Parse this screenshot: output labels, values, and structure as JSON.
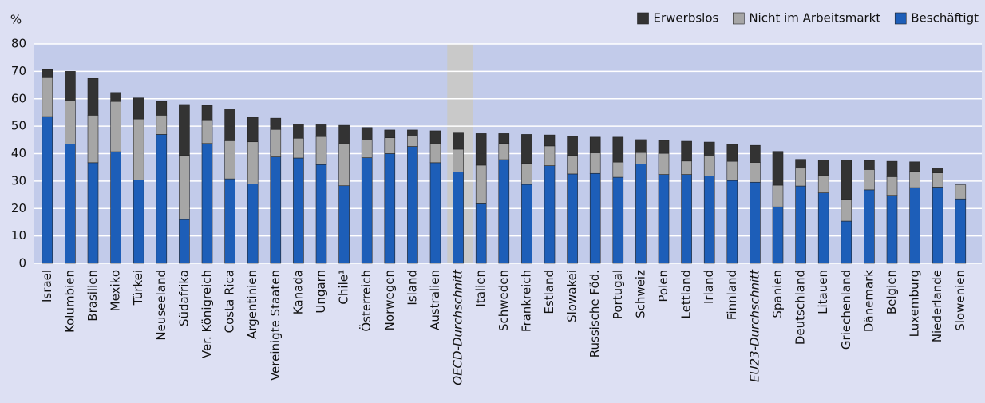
{
  "chart_data": {
    "type": "stacked_bar",
    "y_label": "%",
    "categories": [
      "Israel",
      "Kolumbien",
      "Brasilien",
      "Mexiko",
      "Türkei",
      "Neuseeland",
      "Südafrika",
      "Ver. Königreich",
      "Costa Rica",
      "Argentinien",
      "Vereinigte Staaten",
      "Kanada",
      "Ungarn",
      "Chile¹",
      "Österreich",
      "Norwegen",
      "Island",
      "Australien",
      "OECD-Durchschnitt",
      "Italien",
      "Schweden",
      "Frankreich",
      "Estland",
      "Slowakei",
      "Russische Föd.",
      "Portugal",
      "Schweiz",
      "Polen",
      "Lettland",
      "Irland",
      "Finnland",
      "EU23-Durchschnitt",
      "Spanien",
      "Deutschland",
      "Litauen",
      "Griechenland",
      "Dänemark",
      "Belgien",
      "Luxemburg",
      "Niederlande",
      "Slowenien"
    ],
    "series": [
      {
        "name": "Beschäftigt",
        "color": "#1d5eb8",
        "values": [
          53.5,
          43.5,
          36.7,
          40.7,
          30.4,
          47,
          16,
          43.7,
          30.8,
          29,
          38.8,
          38.4,
          36,
          28.3,
          38.5,
          40,
          42.6,
          36.7,
          33.3,
          21.7,
          37.8,
          28.8,
          35.6,
          32.6,
          32.8,
          31.4,
          36.2,
          32.4,
          32.4,
          31.8,
          30.2,
          29.6,
          20.6,
          28.2,
          25.7,
          15.4,
          26.8,
          24.8,
          27.6,
          27.8,
          23.5
        ]
      },
      {
        "name": "Nicht im Arbeitsmarkt",
        "color": "#a6a6a6",
        "values": [
          14.2,
          15.8,
          17.3,
          18.3,
          22.2,
          7,
          23.4,
          8.6,
          13.9,
          15.3,
          10,
          7.2,
          10.2,
          15.3,
          6.5,
          5.8,
          3.8,
          6.9,
          8.3,
          14.1,
          5.9,
          7.6,
          7.2,
          6.8,
          7.5,
          5.5,
          4.2,
          7.7,
          4.9,
          7.4,
          7,
          7.2,
          7.9,
          6.5,
          6.3,
          7.9,
          7.4,
          6.8,
          5.9,
          5.2,
          5.1
        ]
      },
      {
        "name": "Erwerbslos",
        "color": "#333333",
        "values": [
          2.9,
          10.7,
          13.4,
          3.3,
          7.7,
          5,
          18.5,
          5.2,
          11.6,
          8.9,
          4.1,
          5.2,
          4.3,
          6.7,
          4.5,
          2.8,
          2.2,
          4.7,
          5.9,
          11.5,
          3.6,
          10.6,
          4,
          6.9,
          5.7,
          9.1,
          4.7,
          4.7,
          7.2,
          5,
          6.2,
          6.2,
          12.3,
          3.2,
          5.6,
          14.3,
          3.3,
          5.6,
          3.5,
          1.7,
          0
        ]
      }
    ],
    "ylim": [
      0,
      80
    ],
    "yticks": [
      0,
      10,
      20,
      30,
      40,
      50,
      60,
      70,
      80
    ],
    "grid": true,
    "legend": "top-right",
    "highlight_band": 18,
    "italic_categories": [
      18,
      31
    ]
  }
}
